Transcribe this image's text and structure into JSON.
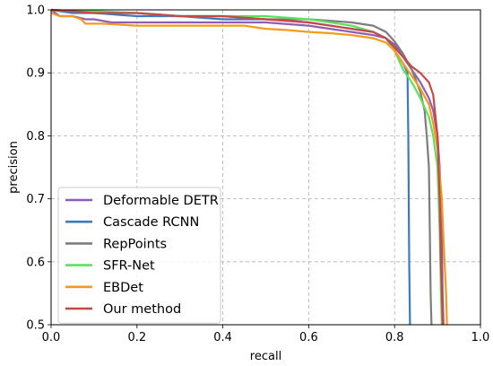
{
  "chart_data": {
    "type": "line",
    "title": "",
    "xlabel": "recall",
    "ylabel": "precision",
    "xlim": [
      0.0,
      1.0
    ],
    "ylim": [
      0.5,
      1.0
    ],
    "xticks": [
      0.0,
      0.2,
      0.4,
      0.6,
      0.8,
      1.0
    ],
    "xtick_labels": [
      "0.0",
      "0.2",
      "0.4",
      "0.6",
      "0.8",
      "1.0"
    ],
    "yticks": [
      0.5,
      0.6,
      0.7,
      0.8,
      0.9,
      1.0
    ],
    "ytick_labels": [
      "0.5",
      "0.6",
      "0.7",
      "0.8",
      "0.9",
      "1.0"
    ],
    "grid": true,
    "legend_position": "lower-left",
    "series": [
      {
        "name": "Deformable DETR",
        "color": "#8d5fb4",
        "x": [
          0.0,
          0.01,
          0.02,
          0.05,
          0.08,
          0.1,
          0.14,
          0.2,
          0.3,
          0.4,
          0.5,
          0.6,
          0.7,
          0.75,
          0.78,
          0.8,
          0.82,
          0.84,
          0.86,
          0.88,
          0.89,
          0.9,
          0.905,
          0.91,
          0.912,
          0.914
        ],
        "y": [
          1.0,
          0.995,
          0.99,
          0.99,
          0.985,
          0.985,
          0.98,
          0.98,
          0.98,
          0.98,
          0.98,
          0.975,
          0.965,
          0.96,
          0.955,
          0.945,
          0.925,
          0.905,
          0.885,
          0.86,
          0.84,
          0.8,
          0.75,
          0.65,
          0.55,
          0.5
        ]
      },
      {
        "name": "Cascade RCNN",
        "color": "#3d79bd",
        "x": [
          0.0,
          0.05,
          0.1,
          0.2,
          0.3,
          0.4,
          0.5,
          0.6,
          0.7,
          0.75,
          0.78,
          0.8,
          0.82,
          0.83,
          0.832,
          0.834,
          0.836
        ],
        "y": [
          1.0,
          0.995,
          0.995,
          0.99,
          0.99,
          0.985,
          0.985,
          0.98,
          0.97,
          0.965,
          0.955,
          0.935,
          0.915,
          0.9,
          0.8,
          0.6,
          0.5
        ]
      },
      {
        "name": "RepPoints",
        "color": "#7d7d7d",
        "x": [
          0.0,
          0.05,
          0.1,
          0.2,
          0.3,
          0.4,
          0.5,
          0.6,
          0.7,
          0.75,
          0.78,
          0.8,
          0.82,
          0.84,
          0.86,
          0.87,
          0.875,
          0.88,
          0.882,
          0.884,
          0.886
        ],
        "y": [
          1.0,
          0.998,
          0.995,
          0.995,
          0.99,
          0.99,
          0.985,
          0.985,
          0.98,
          0.975,
          0.965,
          0.95,
          0.93,
          0.905,
          0.87,
          0.84,
          0.8,
          0.75,
          0.65,
          0.55,
          0.5
        ]
      },
      {
        "name": "SFR-Net",
        "color": "#5be35b",
        "x": [
          0.0,
          0.05,
          0.1,
          0.2,
          0.3,
          0.4,
          0.5,
          0.6,
          0.7,
          0.75,
          0.78,
          0.8,
          0.82,
          0.84,
          0.86,
          0.88,
          0.89,
          0.9,
          0.905,
          0.908,
          0.91
        ],
        "y": [
          1.0,
          0.998,
          0.998,
          0.995,
          0.99,
          0.99,
          0.99,
          0.985,
          0.975,
          0.965,
          0.955,
          0.935,
          0.905,
          0.885,
          0.86,
          0.83,
          0.8,
          0.75,
          0.65,
          0.55,
          0.5
        ]
      },
      {
        "name": "EBDet",
        "color": "#f59a1b",
        "x": [
          0.0,
          0.02,
          0.05,
          0.07,
          0.08,
          0.12,
          0.2,
          0.3,
          0.45,
          0.5,
          0.55,
          0.6,
          0.65,
          0.7,
          0.75,
          0.78,
          0.8,
          0.82,
          0.84,
          0.86,
          0.88,
          0.89,
          0.9,
          0.91,
          0.915,
          0.92,
          0.922
        ],
        "y": [
          0.995,
          0.99,
          0.99,
          0.985,
          0.978,
          0.978,
          0.975,
          0.975,
          0.975,
          0.97,
          0.968,
          0.965,
          0.963,
          0.96,
          0.955,
          0.948,
          0.935,
          0.915,
          0.895,
          0.875,
          0.85,
          0.82,
          0.78,
          0.7,
          0.62,
          0.55,
          0.5
        ]
      },
      {
        "name": "Our method",
        "color": "#c94747",
        "x": [
          0.0,
          0.05,
          0.1,
          0.2,
          0.3,
          0.4,
          0.5,
          0.6,
          0.7,
          0.75,
          0.78,
          0.8,
          0.82,
          0.84,
          0.86,
          0.88,
          0.89,
          0.9,
          0.905,
          0.908,
          0.91,
          0.912
        ],
        "y": [
          1.0,
          0.998,
          0.995,
          0.995,
          0.99,
          0.99,
          0.985,
          0.98,
          0.97,
          0.965,
          0.955,
          0.94,
          0.925,
          0.91,
          0.9,
          0.885,
          0.865,
          0.8,
          0.7,
          0.6,
          0.55,
          0.5
        ]
      }
    ]
  }
}
